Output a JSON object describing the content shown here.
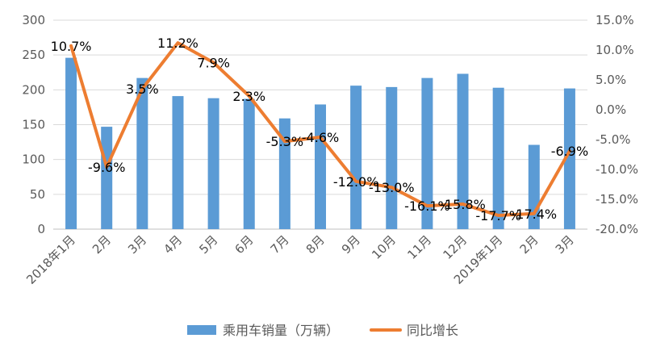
{
  "chart_data": {
    "type": "bar+line",
    "title": "",
    "categories": [
      "2018年1月",
      "2月",
      "3月",
      "4月",
      "5月",
      "6月",
      "7月",
      "8月",
      "9月",
      "10月",
      "11月",
      "12月",
      "2019年1月",
      "2月",
      "3月"
    ],
    "series": [
      {
        "name": "乘用车销量（万辆）",
        "type": "bar",
        "axis": "left",
        "color": "#5B9BD5",
        "values": [
          246,
          147,
          217,
          191,
          188,
          187,
          159,
          179,
          206,
          204,
          217,
          223,
          203,
          121,
          202
        ]
      },
      {
        "name": "同比增长",
        "type": "line",
        "axis": "right",
        "color": "#ED7D31",
        "values": [
          10.7,
          -9.6,
          3.5,
          11.2,
          7.9,
          2.3,
          -5.3,
          -4.6,
          -12.0,
          -13.0,
          -16.1,
          -15.8,
          -17.7,
          -17.4,
          -6.9
        ],
        "labels": [
          "10.7%",
          "-9.6%",
          "3.5%",
          "11.2%",
          "7.9%",
          "2.3%",
          "-5.3%",
          "-4.6%",
          "-12.0%",
          "-13.0%",
          "-16.1%",
          "-15.8%",
          "-17.7%",
          "-17.4%",
          "-6.9%"
        ]
      }
    ],
    "y_left": {
      "min": 0,
      "max": 300,
      "ticks": [
        "0",
        "50",
        "100",
        "150",
        "200",
        "250",
        "300"
      ]
    },
    "y_right": {
      "min": -20,
      "max": 15,
      "ticks": [
        "-20.0%",
        "-15.0%",
        "-10.0%",
        "-5.0%",
        "0.0%",
        "5.0%",
        "10.0%",
        "15.0%"
      ]
    },
    "grid": true,
    "legend_position": "bottom"
  }
}
